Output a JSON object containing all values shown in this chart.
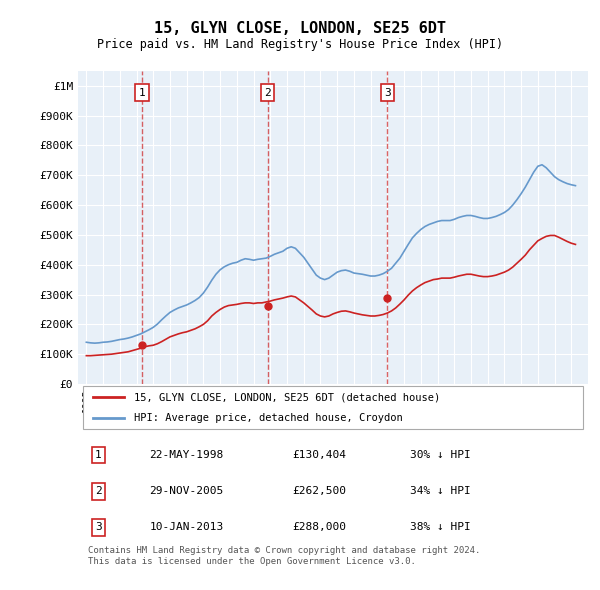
{
  "title": "15, GLYN CLOSE, LONDON, SE25 6DT",
  "subtitle": "Price paid vs. HM Land Registry's House Price Index (HPI)",
  "ylabel": "",
  "xlabel": "",
  "ylim": [
    0,
    1050000
  ],
  "yticks": [
    0,
    100000,
    200000,
    300000,
    400000,
    500000,
    600000,
    700000,
    800000,
    900000,
    1000000
  ],
  "ytick_labels": [
    "£0",
    "£100K",
    "£200K",
    "£300K",
    "£400K",
    "£500K",
    "£600K",
    "£700K",
    "£800K",
    "£900K",
    "£1M"
  ],
  "background_color": "#e8f0f8",
  "plot_bg_color": "#e8f0f8",
  "grid_color": "#ffffff",
  "sale_dates": [
    "1998-05-22",
    "2005-11-29",
    "2013-01-10"
  ],
  "sale_prices": [
    130404,
    262500,
    288000
  ],
  "sale_labels": [
    "1",
    "2",
    "3"
  ],
  "legend_red_label": "15, GLYN CLOSE, LONDON, SE25 6DT (detached house)",
  "legend_blue_label": "HPI: Average price, detached house, Croydon",
  "table_rows": [
    [
      "1",
      "22-MAY-1998",
      "£130,404",
      "30% ↓ HPI"
    ],
    [
      "2",
      "29-NOV-2005",
      "£262,500",
      "34% ↓ HPI"
    ],
    [
      "3",
      "10-JAN-2013",
      "£288,000",
      "38% ↓ HPI"
    ]
  ],
  "footer": "Contains HM Land Registry data © Crown copyright and database right 2024.\nThis data is licensed under the Open Government Licence v3.0.",
  "hpi_years": [
    1995.0,
    1995.25,
    1995.5,
    1995.75,
    1996.0,
    1996.25,
    1996.5,
    1996.75,
    1997.0,
    1997.25,
    1997.5,
    1997.75,
    1998.0,
    1998.25,
    1998.5,
    1998.75,
    1999.0,
    1999.25,
    1999.5,
    1999.75,
    2000.0,
    2000.25,
    2000.5,
    2000.75,
    2001.0,
    2001.25,
    2001.5,
    2001.75,
    2002.0,
    2002.25,
    2002.5,
    2002.75,
    2003.0,
    2003.25,
    2003.5,
    2003.75,
    2004.0,
    2004.25,
    2004.5,
    2004.75,
    2005.0,
    2005.25,
    2005.5,
    2005.75,
    2006.0,
    2006.25,
    2006.5,
    2006.75,
    2007.0,
    2007.25,
    2007.5,
    2007.75,
    2008.0,
    2008.25,
    2008.5,
    2008.75,
    2009.0,
    2009.25,
    2009.5,
    2009.75,
    2010.0,
    2010.25,
    2010.5,
    2010.75,
    2011.0,
    2011.25,
    2011.5,
    2011.75,
    2012.0,
    2012.25,
    2012.5,
    2012.75,
    2013.0,
    2013.25,
    2013.5,
    2013.75,
    2014.0,
    2014.25,
    2014.5,
    2014.75,
    2015.0,
    2015.25,
    2015.5,
    2015.75,
    2016.0,
    2016.25,
    2016.5,
    2016.75,
    2017.0,
    2017.25,
    2017.5,
    2017.75,
    2018.0,
    2018.25,
    2018.5,
    2018.75,
    2019.0,
    2019.25,
    2019.5,
    2019.75,
    2020.0,
    2020.25,
    2020.5,
    2020.75,
    2021.0,
    2021.25,
    2021.5,
    2021.75,
    2022.0,
    2022.25,
    2022.5,
    2022.75,
    2023.0,
    2023.25,
    2023.5,
    2023.75,
    2024.0,
    2024.25
  ],
  "hpi_values": [
    140000,
    138000,
    137000,
    138000,
    140000,
    141000,
    143000,
    146000,
    149000,
    151000,
    154000,
    158000,
    163000,
    168000,
    175000,
    182000,
    190000,
    201000,
    215000,
    228000,
    240000,
    248000,
    255000,
    260000,
    265000,
    272000,
    280000,
    290000,
    305000,
    325000,
    348000,
    368000,
    383000,
    393000,
    400000,
    405000,
    408000,
    415000,
    420000,
    418000,
    415000,
    418000,
    420000,
    422000,
    428000,
    435000,
    440000,
    445000,
    455000,
    460000,
    455000,
    440000,
    425000,
    405000,
    385000,
    365000,
    355000,
    350000,
    355000,
    365000,
    375000,
    380000,
    382000,
    378000,
    372000,
    370000,
    368000,
    365000,
    362000,
    362000,
    365000,
    370000,
    378000,
    388000,
    405000,
    422000,
    445000,
    468000,
    490000,
    505000,
    518000,
    528000,
    535000,
    540000,
    545000,
    548000,
    548000,
    548000,
    552000,
    558000,
    562000,
    565000,
    565000,
    562000,
    558000,
    555000,
    555000,
    558000,
    562000,
    568000,
    575000,
    585000,
    600000,
    618000,
    638000,
    660000,
    685000,
    710000,
    730000,
    735000,
    725000,
    710000,
    695000,
    685000,
    678000,
    672000,
    668000,
    665000
  ],
  "red_years": [
    1995.0,
    1995.25,
    1995.5,
    1995.75,
    1996.0,
    1996.25,
    1996.5,
    1996.75,
    1997.0,
    1997.25,
    1997.5,
    1997.75,
    1998.0,
    1998.25,
    1998.5,
    1998.75,
    1999.0,
    1999.25,
    1999.5,
    1999.75,
    2000.0,
    2000.25,
    2000.5,
    2000.75,
    2001.0,
    2001.25,
    2001.5,
    2001.75,
    2002.0,
    2002.25,
    2002.5,
    2002.75,
    2003.0,
    2003.25,
    2003.5,
    2003.75,
    2004.0,
    2004.25,
    2004.5,
    2004.75,
    2005.0,
    2005.25,
    2005.5,
    2005.75,
    2006.0,
    2006.25,
    2006.5,
    2006.75,
    2007.0,
    2007.25,
    2007.5,
    2007.75,
    2008.0,
    2008.25,
    2008.5,
    2008.75,
    2009.0,
    2009.25,
    2009.5,
    2009.75,
    2010.0,
    2010.25,
    2010.5,
    2010.75,
    2011.0,
    2011.25,
    2011.5,
    2011.75,
    2012.0,
    2012.25,
    2012.5,
    2012.75,
    2013.0,
    2013.25,
    2013.5,
    2013.75,
    2014.0,
    2014.25,
    2014.5,
    2014.75,
    2015.0,
    2015.25,
    2015.5,
    2015.75,
    2016.0,
    2016.25,
    2016.5,
    2016.75,
    2017.0,
    2017.25,
    2017.5,
    2017.75,
    2018.0,
    2018.25,
    2018.5,
    2018.75,
    2019.0,
    2019.25,
    2019.5,
    2019.75,
    2020.0,
    2020.25,
    2020.5,
    2020.75,
    2021.0,
    2021.25,
    2021.5,
    2021.75,
    2022.0,
    2022.25,
    2022.5,
    2022.75,
    2023.0,
    2023.25,
    2023.5,
    2023.75,
    2024.0,
    2024.25
  ],
  "red_values": [
    95000,
    95000,
    96000,
    97000,
    98000,
    99000,
    100000,
    102000,
    104000,
    106000,
    108000,
    112000,
    116000,
    120000,
    125000,
    128000,
    130000,
    135000,
    142000,
    150000,
    158000,
    163000,
    168000,
    172000,
    175000,
    180000,
    185000,
    192000,
    200000,
    212000,
    228000,
    240000,
    250000,
    258000,
    263000,
    265000,
    267000,
    270000,
    272000,
    272000,
    270000,
    272000,
    272000,
    275000,
    278000,
    282000,
    285000,
    288000,
    292000,
    295000,
    292000,
    282000,
    272000,
    260000,
    248000,
    235000,
    228000,
    225000,
    228000,
    235000,
    240000,
    244000,
    245000,
    242000,
    238000,
    235000,
    232000,
    230000,
    228000,
    228000,
    230000,
    233000,
    238000,
    245000,
    255000,
    268000,
    282000,
    298000,
    312000,
    323000,
    332000,
    340000,
    345000,
    350000,
    352000,
    355000,
    355000,
    355000,
    358000,
    362000,
    365000,
    368000,
    368000,
    365000,
    362000,
    360000,
    360000,
    362000,
    365000,
    370000,
    375000,
    382000,
    392000,
    405000,
    418000,
    432000,
    450000,
    465000,
    480000,
    488000,
    495000,
    498000,
    498000,
    492000,
    485000,
    478000,
    472000,
    468000
  ]
}
